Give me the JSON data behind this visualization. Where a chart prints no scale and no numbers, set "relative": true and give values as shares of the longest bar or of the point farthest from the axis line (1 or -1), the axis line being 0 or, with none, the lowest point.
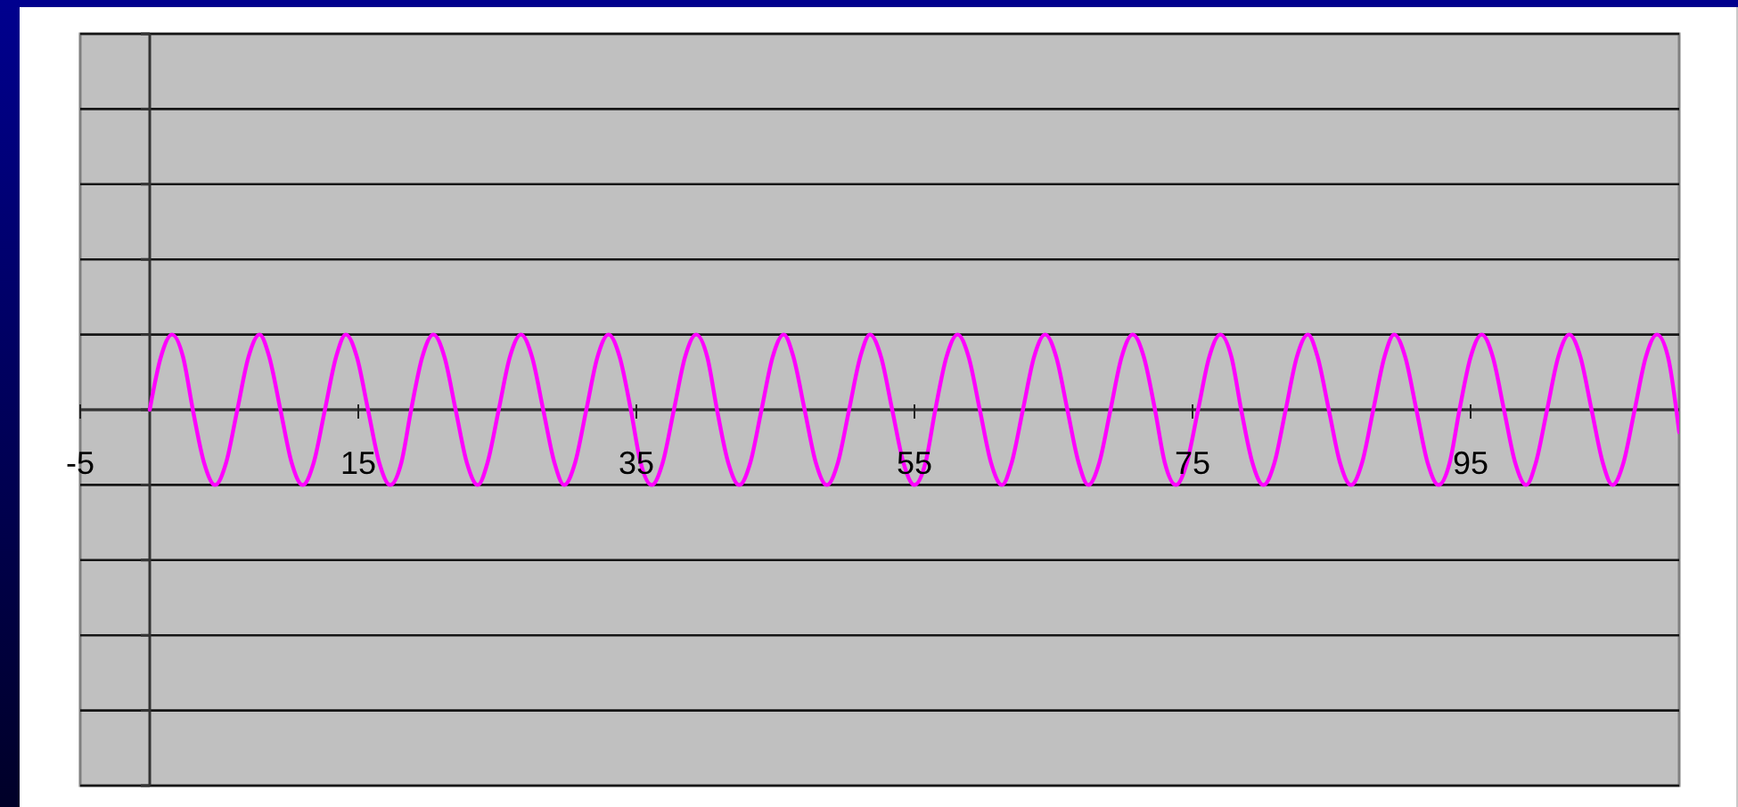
{
  "chart_data": {
    "type": "line",
    "relative": true,
    "xlim": [
      -5,
      110
    ],
    "xticks": [
      -5,
      15,
      35,
      55,
      75,
      95
    ],
    "tick_labels": "x",
    "x": [
      0,
      0.8,
      1.6,
      2.4,
      3.1,
      3.9,
      4.7,
      5.5,
      6.3,
      7.1,
      7.9,
      8.6,
      9.4,
      10.2,
      11.0,
      11.8,
      12.6,
      13.4,
      14.1,
      14.9,
      15.7,
      16.5,
      17.3,
      18.1,
      18.8,
      19.6,
      20.4,
      21.2,
      22.0,
      22.8,
      23.6,
      24.3,
      25.1,
      25.9,
      26.7,
      27.5,
      28.3,
      29.1,
      29.8,
      30.6,
      31.4,
      32.2,
      33.0,
      33.8,
      34.6,
      35.3,
      36.1,
      36.9,
      37.7,
      38.5,
      39.3,
      40.1,
      40.8,
      41.6,
      42.4,
      43.2,
      44.0,
      44.8,
      45.6,
      46.3,
      47.1,
      47.9,
      48.7,
      49.5,
      50.3,
      51.1,
      51.8,
      52.6,
      53.4,
      54.2,
      55.0,
      55.8,
      56.5,
      57.3,
      58.1,
      58.9,
      59.7,
      60.5,
      61.3,
      62.0,
      62.8,
      63.6,
      64.4,
      65.2,
      66.0,
      66.8,
      67.5,
      68.3,
      69.1,
      69.9,
      70.7,
      71.5,
      72.3,
      73.0,
      73.8,
      74.6,
      75.4,
      76.2,
      77.0,
      77.8,
      78.5,
      79.3,
      80.1,
      80.9,
      81.7,
      82.5,
      83.3,
      84.0,
      84.8,
      85.6,
      86.4,
      87.2,
      88.0,
      88.8,
      89.5,
      90.3,
      91.1,
      91.9,
      92.7,
      93.5,
      94.2,
      95.0,
      95.8,
      96.6,
      97.4,
      98.2,
      99.0,
      99.7,
      100.5,
      101.3,
      102.1,
      102.9,
      103.7,
      104.5,
      105.2,
      106.0,
      106.8,
      107.6,
      108.4,
      109.2,
      110.0
    ],
    "series": [
      {
        "color": "#ff00ff",
        "values": [
          0,
          0.7,
          1,
          0.7,
          0,
          -0.7,
          -1,
          -0.7,
          0,
          0.7,
          1,
          0.7,
          0,
          -0.7,
          -1,
          -0.7,
          0,
          0.7,
          1,
          0.7,
          0,
          -0.7,
          -1,
          -0.7,
          0,
          0.7,
          1,
          0.7,
          0,
          -0.7,
          -1,
          -0.7,
          0,
          0.7,
          1,
          0.7,
          0,
          -0.7,
          -1,
          -0.7,
          0,
          0.7,
          1,
          0.7,
          0,
          -0.7,
          -1,
          -0.7,
          0,
          0.7,
          1,
          0.7,
          0,
          -0.7,
          -1,
          -0.7,
          0,
          0.7,
          1,
          0.7,
          0,
          -0.7,
          -1,
          -0.7,
          0,
          0.7,
          1,
          0.7,
          0,
          -0.7,
          -1,
          -0.7,
          0,
          0.7,
          1,
          0.7,
          0,
          -0.7,
          -1,
          -0.7,
          0,
          0.7,
          1,
          0.7,
          0,
          -0.7,
          -1,
          -0.7,
          0,
          0.7,
          1,
          0.7,
          0,
          -0.7,
          -1,
          -0.7,
          0,
          0.7,
          1,
          0.7,
          0,
          -0.7,
          -1,
          -0.7,
          0,
          0.7,
          1,
          0.7,
          0,
          -0.7,
          -1,
          -0.7,
          0,
          0.7,
          1,
          0.7,
          0,
          -0.7,
          -1,
          -0.7,
          0,
          0.7,
          1,
          0.7,
          0,
          -0.7,
          -1,
          -0.7,
          0,
          0.7,
          1,
          0.7,
          0,
          -0.7,
          -1,
          -0.7,
          0,
          0.7,
          1,
          0.7,
          -0.3
        ]
      }
    ]
  }
}
